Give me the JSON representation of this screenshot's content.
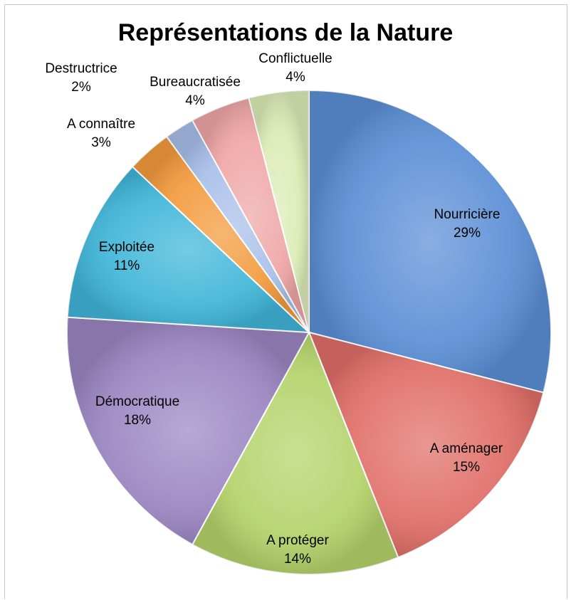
{
  "chart_data": {
    "type": "pie",
    "title": "Représentations de la Nature",
    "slices": [
      {
        "label": "Nourricière",
        "value": 29,
        "display": "29%",
        "color": "#5b8fd6"
      },
      {
        "label": "A aménager",
        "value": 15,
        "display": "15%",
        "color": "#e06e68"
      },
      {
        "label": "A protéger",
        "value": 14,
        "display": "14%",
        "color": "#b4d36a"
      },
      {
        "label": "Démocratique",
        "value": 18,
        "display": "18%",
        "color": "#9a86c2"
      },
      {
        "label": "Exploitée",
        "value": 11,
        "display": "11%",
        "color": "#3fb6d8"
      },
      {
        "label": "A connaître",
        "value": 3,
        "display": "3%",
        "color": "#f39a3c"
      },
      {
        "label": "Destructrice",
        "value": 2,
        "display": "2%",
        "color": "#a8bfe9"
      },
      {
        "label": "Bureaucratisée",
        "value": 4,
        "display": "4%",
        "color": "#efa6a6"
      },
      {
        "label": "Conflictuelle",
        "value": 4,
        "display": "4%",
        "color": "#dcebb6"
      }
    ],
    "legend": "none"
  }
}
